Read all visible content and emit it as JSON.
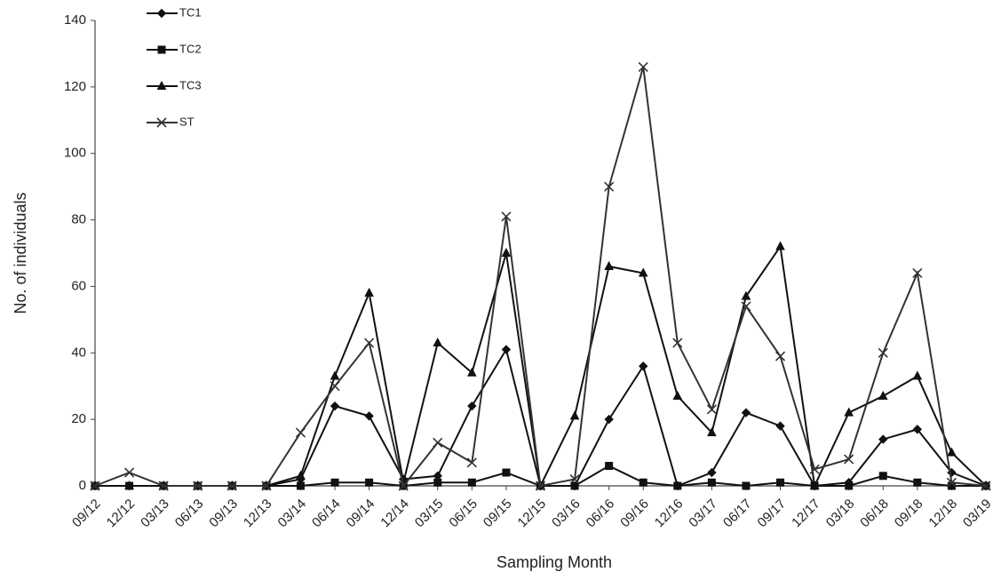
{
  "chart_data": {
    "type": "line",
    "x_label": "Sampling Month",
    "y_label": "No. of individuals",
    "categories": [
      "09/12",
      "12/12",
      "03/13",
      "06/13",
      "09/13",
      "12/13",
      "03/14",
      "06/14",
      "09/14",
      "12/14",
      "03/15",
      "06/15",
      "09/15",
      "12/15",
      "03/16",
      "06/16",
      "09/16",
      "12/16",
      "03/17",
      "06/17",
      "09/17",
      "12/17",
      "03/18",
      "06/18",
      "09/18",
      "12/18",
      "03/19"
    ],
    "series": [
      {
        "name": "TC1",
        "color": "#111111",
        "marker": "diamond",
        "values": [
          0,
          0,
          0,
          0,
          0,
          0,
          2,
          24,
          21,
          2,
          3,
          24,
          41,
          0,
          0,
          20,
          36,
          0,
          4,
          22,
          18,
          0,
          1,
          14,
          17,
          4,
          0
        ]
      },
      {
        "name": "TC2",
        "color": "#111111",
        "marker": "square",
        "values": [
          0,
          0,
          0,
          0,
          0,
          0,
          0,
          1,
          1,
          0,
          1,
          1,
          4,
          0,
          0,
          6,
          1,
          0,
          1,
          0,
          1,
          0,
          0,
          3,
          1,
          0,
          0
        ]
      },
      {
        "name": "TC3",
        "color": "#111111",
        "marker": "triangle",
        "values": [
          0,
          0,
          0,
          0,
          0,
          0,
          3,
          33,
          58,
          1,
          43,
          34,
          70,
          0,
          21,
          66,
          64,
          27,
          16,
          57,
          72,
          0,
          22,
          27,
          33,
          10,
          0
        ]
      },
      {
        "name": "ST",
        "color": "#333333",
        "marker": "cross",
        "values": [
          0,
          4,
          0,
          0,
          0,
          0,
          16,
          30,
          43,
          0,
          13,
          7,
          81,
          0,
          2,
          90,
          126,
          43,
          23,
          54,
          39,
          5,
          8,
          40,
          64,
          1,
          0
        ]
      }
    ],
    "ylim": [
      0,
      140
    ],
    "yticks": [
      0,
      20,
      40,
      60,
      80,
      100,
      120,
      140
    ],
    "grid": false,
    "legend": "top-left"
  }
}
